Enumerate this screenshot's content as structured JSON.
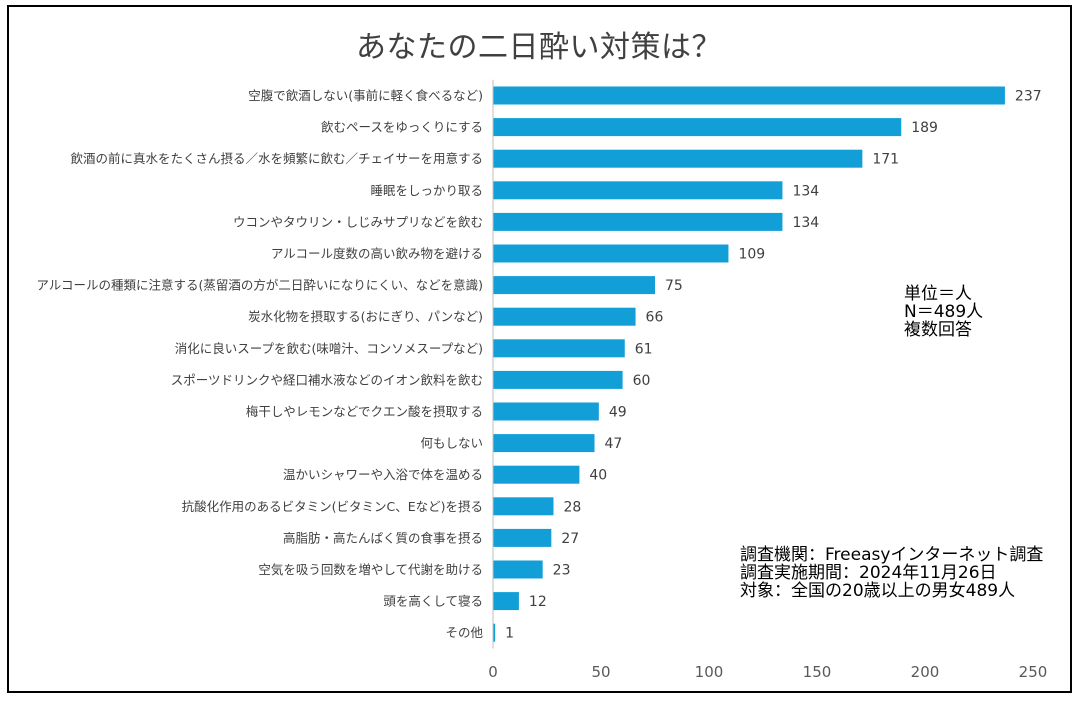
{
  "chart_data": {
    "type": "bar",
    "orientation": "horizontal",
    "title": "あなたの二日酔い対策は？",
    "xlabel": "",
    "ylabel": "",
    "xlim": [
      0,
      250
    ],
    "x_ticks": [
      0,
      50,
      100,
      150,
      200,
      250
    ],
    "grid": false,
    "legend": null,
    "bar_color": "#129fd8",
    "categories": [
      "空腹で飲酒しない(事前に軽く食べるなど)",
      "飲むペースをゆっくりにする",
      "飲酒の前に真水をたくさん摂る／水を頻繁に飲む／チェイサーを用意する",
      "睡眠をしっかり取る",
      "ウコンやタウリン・しじみサプリなどを飲む",
      "アルコール度数の高い飲み物を避ける",
      "アルコールの種類に注意する(蒸留酒の方が二日酔いになりにくい、などを意識)",
      "炭水化物を摂取する(おにぎり、パンなど)",
      "消化に良いスープを飲む(味噌汁、コンソメスープなど)",
      "スポーツドリンクや経口補水液などのイオン飲料を飲む",
      "梅干しやレモンなどでクエン酸を摂取する",
      "何もしない",
      "温かいシャワーや入浴で体を温める",
      "抗酸化作用のあるビタミン(ビタミンC、Eなど)を摂る",
      "高脂肪・高たんぱく質の食事を摂る",
      "空気を吸う回数を増やして代謝を助ける",
      "頭を高くして寝る",
      "その他"
    ],
    "values": [
      237,
      189,
      171,
      134,
      134,
      109,
      75,
      66,
      61,
      60,
      49,
      47,
      40,
      28,
      27,
      23,
      12,
      1
    ]
  },
  "notes": {
    "unit": "単位＝人\nN＝489人\n複数回答",
    "survey": "調査機関：Freeasyインターネット調査\n調査実施期間：2024年11月26日\n対象：全国の20歳以上の男女489人"
  },
  "colors": {
    "bar": "#129fd8",
    "axis": "#bfbfbf",
    "text": "#404040",
    "border": "#000000"
  }
}
